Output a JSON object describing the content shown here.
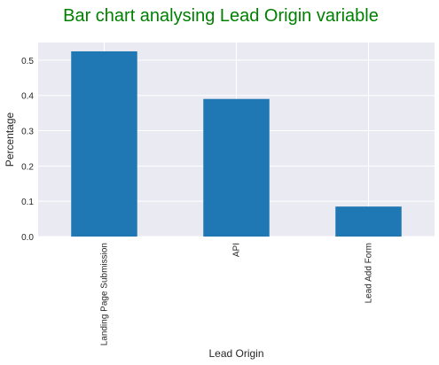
{
  "chart_data": {
    "type": "bar",
    "title": "Bar chart analysing Lead Origin variable",
    "xlabel": "Lead Origin",
    "ylabel": "Percentage",
    "categories": [
      "Landing Page Submission",
      "API",
      "Lead Add Form"
    ],
    "values": [
      0.525,
      0.39,
      0.085
    ],
    "ylim": [
      0,
      0.55
    ],
    "yticks": [
      0.0,
      0.1,
      0.2,
      0.3,
      0.4,
      0.5
    ],
    "ytick_labels": [
      "0.0",
      "0.1",
      "0.2",
      "0.3",
      "0.4",
      "0.5"
    ],
    "grid": true,
    "legend": "none",
    "colors": {
      "bar": "#1f77b4",
      "plot_background": "#eaeaf2",
      "grid": "#ffffff",
      "title": "#008000",
      "text": "#262626"
    }
  }
}
